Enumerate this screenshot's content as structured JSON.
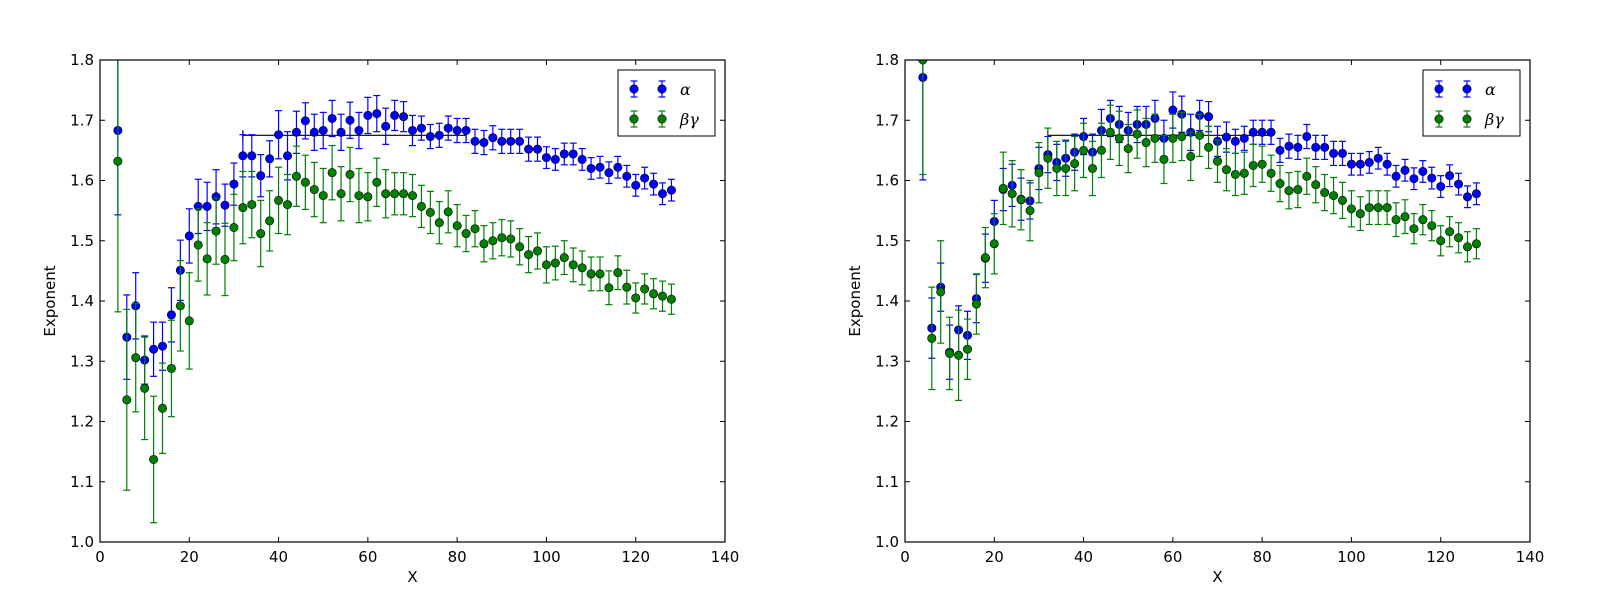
{
  "chart_data": [
    {
      "type": "scatter",
      "xlabel": "X",
      "ylabel": "Exponent",
      "xlim": [
        0,
        140
      ],
      "ylim": [
        1.0,
        1.8
      ],
      "xticks": [
        0,
        20,
        40,
        60,
        80,
        100,
        120,
        140
      ],
      "yticks": [
        1.0,
        1.1,
        1.2,
        1.3,
        1.4,
        1.5,
        1.6,
        1.7,
        1.8
      ],
      "xtick_labels": [
        "0",
        "20",
        "40",
        "60",
        "80",
        "100",
        "120",
        "140"
      ],
      "ytick_labels": [
        "1.0",
        "1.1",
        "1.2",
        "1.3",
        "1.4",
        "1.5",
        "1.6",
        "1.7",
        "1.8"
      ],
      "legend_position": "top-right",
      "reference_line": {
        "x": [
          32,
          82
        ],
        "y": 1.675
      },
      "x": [
        4,
        6,
        8,
        10,
        12,
        14,
        16,
        18,
        20,
        22,
        24,
        26,
        28,
        30,
        32,
        34,
        36,
        38,
        40,
        42,
        44,
        46,
        48,
        50,
        52,
        54,
        56,
        58,
        60,
        62,
        64,
        66,
        68,
        70,
        72,
        74,
        76,
        78,
        80,
        82,
        84,
        86,
        88,
        90,
        92,
        94,
        96,
        98,
        100,
        102,
        104,
        106,
        108,
        110,
        112,
        114,
        116,
        118,
        120,
        122,
        124,
        126,
        128
      ],
      "series": [
        {
          "name": "α",
          "color": "#0000ff",
          "values": [
            1.683,
            1.34,
            1.392,
            1.302,
            1.32,
            1.325,
            1.377,
            1.451,
            1.508,
            1.557,
            1.557,
            1.573,
            1.559,
            1.594,
            1.641,
            1.641,
            1.608,
            1.636,
            1.676,
            1.641,
            1.68,
            1.699,
            1.68,
            1.683,
            1.703,
            1.68,
            1.7,
            1.683,
            1.708,
            1.711,
            1.69,
            1.708,
            1.706,
            1.683,
            1.687,
            1.673,
            1.675,
            1.687,
            1.683,
            1.683,
            1.665,
            1.663,
            1.671,
            1.665,
            1.665,
            1.665,
            1.652,
            1.652,
            1.638,
            1.635,
            1.644,
            1.644,
            1.635,
            1.62,
            1.622,
            1.613,
            1.622,
            1.607,
            1.592,
            1.604,
            1.594,
            1.578,
            1.584
          ],
          "errors": [
            0.14,
            0.07,
            0.055,
            0.04,
            0.045,
            0.04,
            0.045,
            0.05,
            0.045,
            0.045,
            0.04,
            0.045,
            0.035,
            0.035,
            0.035,
            0.035,
            0.035,
            0.03,
            0.04,
            0.04,
            0.035,
            0.03,
            0.03,
            0.03,
            0.03,
            0.03,
            0.03,
            0.03,
            0.03,
            0.03,
            0.03,
            0.025,
            0.025,
            0.025,
            0.02,
            0.02,
            0.02,
            0.02,
            0.02,
            0.02,
            0.02,
            0.02,
            0.02,
            0.02,
            0.02,
            0.02,
            0.02,
            0.02,
            0.018,
            0.018,
            0.018,
            0.018,
            0.018,
            0.018,
            0.018,
            0.018,
            0.018,
            0.018,
            0.018,
            0.018,
            0.018,
            0.018,
            0.018
          ]
        },
        {
          "name": "βγ",
          "color": "#008000",
          "values": [
            1.632,
            1.236,
            1.306,
            1.255,
            1.137,
            1.222,
            1.288,
            1.392,
            1.367,
            1.493,
            1.47,
            1.516,
            1.469,
            1.522,
            1.555,
            1.56,
            1.512,
            1.533,
            1.567,
            1.56,
            1.607,
            1.597,
            1.585,
            1.575,
            1.613,
            1.578,
            1.61,
            1.575,
            1.573,
            1.597,
            1.578,
            1.578,
            1.578,
            1.575,
            1.557,
            1.547,
            1.53,
            1.548,
            1.525,
            1.512,
            1.52,
            1.495,
            1.5,
            1.505,
            1.503,
            1.49,
            1.477,
            1.483,
            1.46,
            1.463,
            1.472,
            1.46,
            1.455,
            1.445,
            1.445,
            1.422,
            1.447,
            1.423,
            1.405,
            1.42,
            1.412,
            1.408,
            1.403
          ],
          "errors": [
            0.25,
            0.15,
            0.09,
            0.085,
            0.105,
            0.075,
            0.08,
            0.075,
            0.08,
            0.06,
            0.06,
            0.055,
            0.06,
            0.055,
            0.06,
            0.055,
            0.055,
            0.05,
            0.055,
            0.05,
            0.05,
            0.045,
            0.045,
            0.045,
            0.045,
            0.045,
            0.045,
            0.045,
            0.04,
            0.04,
            0.04,
            0.035,
            0.035,
            0.035,
            0.035,
            0.035,
            0.035,
            0.035,
            0.035,
            0.03,
            0.03,
            0.03,
            0.03,
            0.03,
            0.03,
            0.03,
            0.03,
            0.03,
            0.03,
            0.028,
            0.028,
            0.028,
            0.028,
            0.028,
            0.028,
            0.028,
            0.028,
            0.028,
            0.025,
            0.025,
            0.025,
            0.025,
            0.025
          ]
        }
      ]
    },
    {
      "type": "scatter",
      "xlabel": "X",
      "ylabel": "Exponent",
      "xlim": [
        0,
        140
      ],
      "ylim": [
        1.0,
        1.8
      ],
      "xticks": [
        0,
        20,
        40,
        60,
        80,
        100,
        120,
        140
      ],
      "yticks": [
        1.0,
        1.1,
        1.2,
        1.3,
        1.4,
        1.5,
        1.6,
        1.7,
        1.8
      ],
      "xtick_labels": [
        "0",
        "20",
        "40",
        "60",
        "80",
        "100",
        "120",
        "140"
      ],
      "ytick_labels": [
        "1.0",
        "1.1",
        "1.2",
        "1.3",
        "1.4",
        "1.5",
        "1.6",
        "1.7",
        "1.8"
      ],
      "legend_position": "top-right",
      "reference_line": {
        "x": [
          32,
          82
        ],
        "y": 1.675
      },
      "x": [
        4,
        6,
        8,
        10,
        12,
        14,
        16,
        18,
        20,
        22,
        24,
        26,
        28,
        30,
        32,
        34,
        36,
        38,
        40,
        42,
        44,
        46,
        48,
        50,
        52,
        54,
        56,
        58,
        60,
        62,
        64,
        66,
        68,
        70,
        72,
        74,
        76,
        78,
        80,
        82,
        84,
        86,
        88,
        90,
        92,
        94,
        96,
        98,
        100,
        102,
        104,
        106,
        108,
        110,
        112,
        114,
        116,
        118,
        120,
        122,
        124,
        126,
        128
      ],
      "series": [
        {
          "name": "α",
          "color": "#0000ff",
          "values": [
            1.771,
            1.355,
            1.423,
            1.315,
            1.352,
            1.343,
            1.404,
            1.471,
            1.532,
            1.585,
            1.592,
            1.569,
            1.566,
            1.62,
            1.643,
            1.63,
            1.637,
            1.647,
            1.673,
            1.647,
            1.683,
            1.703,
            1.693,
            1.683,
            1.693,
            1.693,
            1.703,
            1.67,
            1.717,
            1.71,
            1.68,
            1.708,
            1.706,
            1.665,
            1.672,
            1.665,
            1.67,
            1.68,
            1.68,
            1.68,
            1.65,
            1.657,
            1.655,
            1.673,
            1.655,
            1.655,
            1.645,
            1.645,
            1.627,
            1.627,
            1.63,
            1.637,
            1.627,
            1.607,
            1.617,
            1.603,
            1.615,
            1.604,
            1.59,
            1.608,
            1.594,
            1.573,
            1.578
          ],
          "errors": [
            0.17,
            0.05,
            0.04,
            0.045,
            0.04,
            0.04,
            0.04,
            0.04,
            0.035,
            0.035,
            0.035,
            0.035,
            0.03,
            0.035,
            0.03,
            0.03,
            0.03,
            0.03,
            0.03,
            0.03,
            0.035,
            0.03,
            0.03,
            0.03,
            0.03,
            0.03,
            0.03,
            0.03,
            0.03,
            0.03,
            0.03,
            0.025,
            0.025,
            0.025,
            0.025,
            0.02,
            0.02,
            0.02,
            0.02,
            0.02,
            0.02,
            0.02,
            0.02,
            0.02,
            0.02,
            0.02,
            0.02,
            0.02,
            0.018,
            0.018,
            0.018,
            0.018,
            0.018,
            0.018,
            0.018,
            0.018,
            0.018,
            0.018,
            0.018,
            0.018,
            0.018,
            0.018,
            0.018
          ]
        },
        {
          "name": "βγ",
          "color": "#008000",
          "values": [
            1.8,
            1.338,
            1.415,
            1.313,
            1.31,
            1.32,
            1.395,
            1.472,
            1.495,
            1.587,
            1.578,
            1.568,
            1.55,
            1.613,
            1.637,
            1.62,
            1.62,
            1.628,
            1.65,
            1.62,
            1.65,
            1.68,
            1.67,
            1.653,
            1.677,
            1.663,
            1.67,
            1.635,
            1.67,
            1.673,
            1.64,
            1.675,
            1.655,
            1.632,
            1.618,
            1.61,
            1.612,
            1.625,
            1.627,
            1.612,
            1.595,
            1.583,
            1.585,
            1.607,
            1.593,
            1.58,
            1.575,
            1.567,
            1.553,
            1.545,
            1.555,
            1.555,
            1.555,
            1.535,
            1.54,
            1.52,
            1.535,
            1.525,
            1.5,
            1.515,
            1.505,
            1.49,
            1.495
          ],
          "errors": [
            0.19,
            0.085,
            0.085,
            0.06,
            0.075,
            0.05,
            0.05,
            0.05,
            0.05,
            0.06,
            0.055,
            0.05,
            0.05,
            0.05,
            0.05,
            0.045,
            0.045,
            0.045,
            0.045,
            0.045,
            0.045,
            0.045,
            0.045,
            0.04,
            0.04,
            0.04,
            0.04,
            0.04,
            0.04,
            0.04,
            0.04,
            0.035,
            0.035,
            0.035,
            0.035,
            0.035,
            0.035,
            0.035,
            0.03,
            0.03,
            0.03,
            0.03,
            0.03,
            0.03,
            0.03,
            0.03,
            0.03,
            0.03,
            0.03,
            0.028,
            0.028,
            0.028,
            0.028,
            0.028,
            0.028,
            0.025,
            0.025,
            0.025,
            0.025,
            0.025,
            0.025,
            0.025,
            0.025
          ]
        }
      ]
    }
  ]
}
